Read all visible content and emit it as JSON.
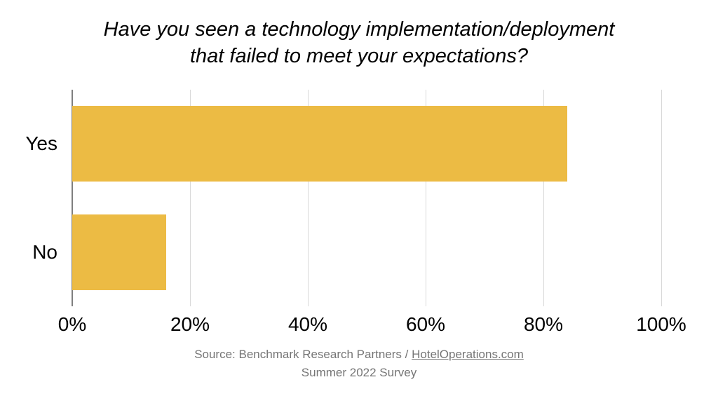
{
  "chart_data": {
    "type": "bar",
    "orientation": "horizontal",
    "title": "Have you seen a technology implementation/deployment that failed to meet your expectations?",
    "title_lines": [
      "Have you seen a technology implementation/deployment",
      "that failed to meet your expectations?"
    ],
    "categories": [
      "Yes",
      "No"
    ],
    "values": [
      84,
      16
    ],
    "xlabel": "",
    "ylabel": "",
    "xlim": [
      0,
      100
    ],
    "x_ticks": [
      "0%",
      "20%",
      "40%",
      "60%",
      "80%",
      "100%"
    ],
    "x_tick_values": [
      0,
      20,
      40,
      60,
      80,
      100
    ],
    "grid": "vertical-only",
    "legend": "none",
    "bar_color": "#ECBB44"
  },
  "colors": {
    "bar": "#ECBB44",
    "axis_line": "#7f7f7f",
    "gridline": "#d9d9d9",
    "text": "#000000",
    "footer_text": "#757575"
  },
  "footer": {
    "source_prefix": "Source: Benchmark Research Partners / ",
    "source_link": "HotelOperations.com",
    "source_line2": "Summer 2022 Survey"
  }
}
